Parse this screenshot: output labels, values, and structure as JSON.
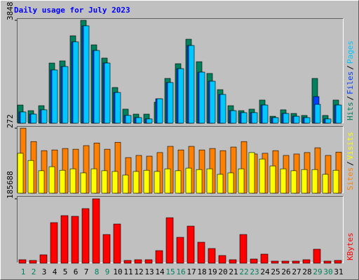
{
  "chart_data": [
    {
      "type": "bar",
      "title": "Daily usage for July 2023",
      "categories": [
        "1",
        "2",
        "3",
        "4",
        "5",
        "6",
        "7",
        "8",
        "9",
        "10",
        "11",
        "12",
        "13",
        "14",
        "15",
        "16",
        "17",
        "18",
        "19",
        "20",
        "21",
        "22",
        "23",
        "24",
        "25",
        "26",
        "27",
        "28",
        "29",
        "30",
        "31"
      ],
      "category_colors": [
        "#00805c",
        "#00805c",
        "#000000",
        "#000000",
        "#000000",
        "#000000",
        "#000000",
        "#00805c",
        "#00805c",
        "#000000",
        "#000000",
        "#000000",
        "#000000",
        "#000000",
        "#00805c",
        "#00805c",
        "#000000",
        "#000000",
        "#000000",
        "#000000",
        "#000000",
        "#00805c",
        "#00805c",
        "#000000",
        "#000000",
        "#000000",
        "#000000",
        "#000000",
        "#00805c",
        "#00805c",
        "#000000"
      ],
      "ylim": [
        0,
        3926
      ],
      "yticks": [
        3848
      ],
      "separator": "/",
      "series": [
        {
          "name": "Hits",
          "color": "#00805c",
          "values": [
            680,
            470,
            655,
            2250,
            2330,
            3270,
            3848,
            2930,
            2435,
            1335,
            525,
            340,
            340,
            785,
            1675,
            2225,
            3140,
            2300,
            1860,
            1255,
            655,
            470,
            525,
            865,
            260,
            500,
            365,
            290,
            1675,
            290,
            865
          ]
        },
        {
          "name": "Files",
          "color": "#0040ff",
          "values": [
            420,
            340,
            500,
            1990,
            2120,
            3040,
            3640,
            2720,
            2250,
            1150,
            290,
            210,
            160,
            915,
            1520,
            2040,
            2905,
            1910,
            1570,
            1075,
            470,
            395,
            395,
            680,
            210,
            365,
            260,
            210,
            995,
            160,
            680
          ]
        },
        {
          "name": "Pages",
          "color": "#00c8ff",
          "values": [
            420,
            340,
            500,
            1990,
            2120,
            3040,
            3640,
            2720,
            2250,
            1150,
            290,
            210,
            160,
            915,
            1520,
            2040,
            2905,
            1910,
            1570,
            1075,
            470,
            395,
            395,
            680,
            210,
            365,
            260,
            210,
            705,
            160,
            680
          ]
        }
      ]
    },
    {
      "type": "bar",
      "ylim": [
        0,
        281
      ],
      "yticks": [
        272
      ],
      "separator": "/",
      "series": [
        {
          "name": "Sites",
          "color": "#ff8000",
          "values": [
            272,
            216,
            178,
            181,
            187,
            184,
            199,
            210,
            184,
            213,
            149,
            158,
            155,
            170,
            196,
            181,
            196,
            181,
            187,
            178,
            193,
            216,
            164,
            167,
            178,
            158,
            164,
            170,
            190,
            158,
            172
          ]
        },
        {
          "name": "Visits",
          "color": "#ffff00",
          "values": [
            167,
            137,
            94,
            111,
            96,
            102,
            85,
            102,
            94,
            91,
            76,
            91,
            96,
            91,
            102,
            94,
            105,
            99,
            102,
            79,
            85,
            102,
            170,
            143,
            114,
            102,
            94,
            99,
            99,
            79,
            96
          ]
        }
      ]
    },
    {
      "type": "bar",
      "ylim": [
        0,
        193760
      ],
      "yticks": [
        185688
      ],
      "series": [
        {
          "name": "KBytes",
          "color": "#ff0000",
          "values": [
            10090,
            8070,
            24220,
            117050,
            137230,
            135210,
            157410,
            185688,
            82740,
            113010,
            8070,
            10090,
            10090,
            36320,
            131170,
            74670,
            106960,
            60540,
            42380,
            22200,
            10090,
            82740,
            12110,
            26230,
            6050,
            6050,
            6050,
            10090,
            40360,
            6050,
            8070
          ]
        }
      ]
    }
  ]
}
